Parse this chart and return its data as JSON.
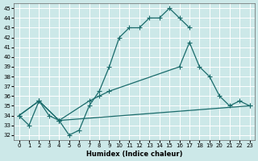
{
  "xlabel": "Humidex (Indice chaleur)",
  "bg_color": "#cce8e8",
  "line_color": "#1a6b6b",
  "grid_color": "#ffffff",
  "xlim": [
    -0.5,
    23.5
  ],
  "ylim": [
    31.5,
    45.5
  ],
  "xticks": [
    0,
    1,
    2,
    3,
    4,
    5,
    6,
    7,
    8,
    9,
    10,
    11,
    12,
    13,
    14,
    15,
    16,
    17,
    18,
    19,
    20,
    21,
    22,
    23
  ],
  "yticks": [
    32,
    33,
    34,
    35,
    36,
    37,
    38,
    39,
    40,
    41,
    42,
    43,
    44,
    45
  ],
  "line1_x": [
    0,
    1,
    2,
    3,
    4,
    5,
    6,
    7,
    8,
    9,
    10,
    11,
    12,
    13,
    14,
    15,
    16,
    17
  ],
  "line1_y": [
    34.0,
    33.0,
    35.5,
    34.0,
    33.5,
    32.0,
    32.5,
    35.0,
    36.5,
    39.0,
    42.0,
    43.0,
    43.0,
    44.0,
    44.0,
    45.0,
    44.0,
    43.0
  ],
  "line2_x": [
    0,
    2,
    4,
    7,
    8,
    9,
    16,
    17,
    18,
    19,
    20,
    21,
    22,
    23
  ],
  "line2_y": [
    34.0,
    35.5,
    33.5,
    35.5,
    36.0,
    36.5,
    39.0,
    41.5,
    39.0,
    38.0,
    36.0,
    35.0,
    35.5,
    35.0
  ],
  "line3_x": [
    0,
    2,
    4,
    23
  ],
  "line3_y": [
    34.0,
    35.5,
    33.5,
    35.0
  ]
}
